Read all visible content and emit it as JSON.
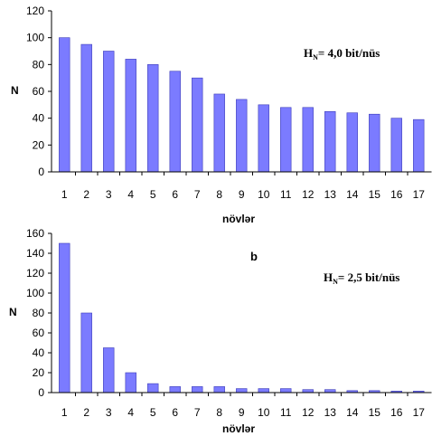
{
  "chart_data": [
    {
      "type": "bar",
      "panel_label": "",
      "categories": [
        "1",
        "2",
        "3",
        "4",
        "5",
        "6",
        "7",
        "8",
        "9",
        "10",
        "11",
        "12",
        "13",
        "14",
        "15",
        "16",
        "17"
      ],
      "values": [
        100,
        95,
        90,
        84,
        80,
        75,
        70,
        58,
        54,
        50,
        48,
        48,
        45,
        44,
        43,
        40,
        39
      ],
      "title": "",
      "xlabel": "növlər",
      "ylabel": "N",
      "ylim": [
        0,
        120
      ],
      "yticks": [
        0,
        20,
        40,
        60,
        80,
        100,
        120
      ],
      "annotation": {
        "main": "H",
        "sub": "N",
        "rest": "= 4,0 bit/nüs"
      },
      "bar_color": "#7b7bff",
      "grid": false
    },
    {
      "type": "bar",
      "panel_label": "b",
      "categories": [
        "1",
        "2",
        "3",
        "4",
        "5",
        "6",
        "7",
        "8",
        "9",
        "10",
        "11",
        "12",
        "13",
        "14",
        "15",
        "16",
        "17"
      ],
      "values": [
        150,
        80,
        45,
        20,
        9,
        6,
        6,
        6,
        4,
        4,
        4,
        3,
        3,
        2,
        2,
        1.5,
        1.5
      ],
      "title": "",
      "xlabel": "növlər",
      "ylabel": "N",
      "ylim": [
        0,
        160
      ],
      "yticks": [
        0,
        20,
        40,
        60,
        80,
        100,
        120,
        140,
        160
      ],
      "annotation": {
        "main": "H",
        "sub": "N",
        "rest": "= 2,5 bit/nüs"
      },
      "bar_color": "#7b7bff",
      "grid": false
    }
  ]
}
